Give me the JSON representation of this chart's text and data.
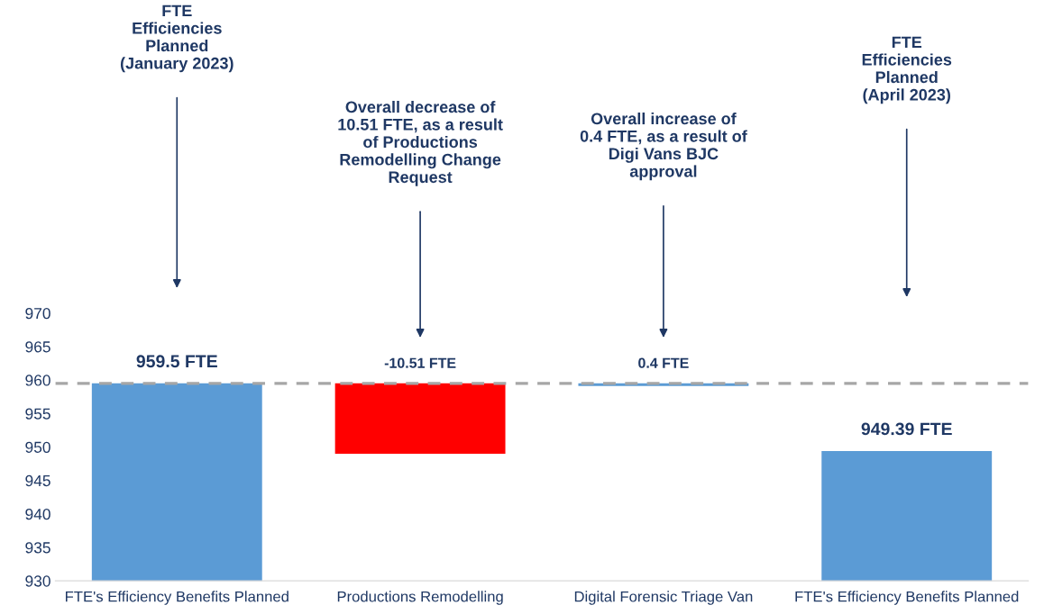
{
  "chart_data": {
    "type": "bar",
    "categories": [
      "FTE's Efficiency Benefits Planned",
      "Productions Remodelling",
      "Digital Forensic Triage Van",
      "FTE's Efficiency Benefits Planned"
    ],
    "values": [
      959.5,
      -10.51,
      0.4,
      949.39
    ],
    "base": [
      null,
      959.5,
      959.1,
      null
    ],
    "colors": [
      "#5b9bd5",
      "#ff0000",
      "#5b9bd5",
      "#5b9bd5"
    ],
    "value_labels": [
      "959.5 FTE",
      "-10.51 FTE",
      "0.4 FTE",
      "949.39 FTE"
    ],
    "ylim": [
      930,
      970
    ],
    "yticks": [
      930,
      935,
      940,
      945,
      950,
      955,
      960,
      965,
      970
    ],
    "ref_lines": [
      {
        "axis": "y",
        "value": 959.5,
        "color": "#a6a6a6",
        "line_style": "dashed"
      }
    ],
    "annotations": [
      "FTE\nEfficiencies\nPlanned\n(January 2023)",
      "Overall decrease of\n10.51 FTE, as a result\nof Productions\nRemodelling Change\nRequest",
      "Overall increase of\n0.4 FTE, as a result of\nDigi Vans BJC\napproval",
      "FTE\nEfficiencies\nPlanned\n(April 2023)"
    ],
    "grid": false,
    "legend": false
  }
}
